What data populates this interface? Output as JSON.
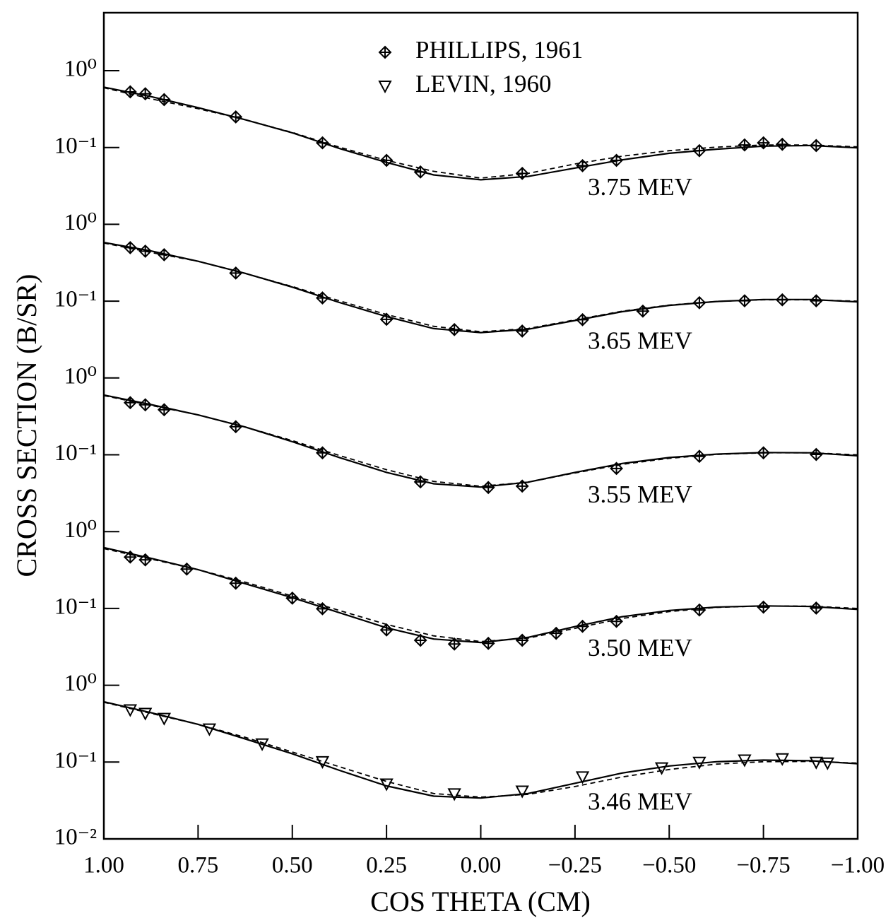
{
  "chart_data": {
    "type": "line",
    "log_y": true,
    "xlabel": "COS THETA (CM)",
    "ylabel": "CROSS SECTION  (B/SR)",
    "xlim": [
      1,
      -1
    ],
    "xticks": [
      {
        "value": 1,
        "label": "1.00"
      },
      {
        "value": 0.75,
        "label": "0.75"
      },
      {
        "value": 0.5,
        "label": "0.50"
      },
      {
        "value": 0.25,
        "label": "0.25"
      },
      {
        "value": 0,
        "label": "0.00"
      },
      {
        "value": -0.25,
        "label": "−0.25"
      },
      {
        "value": -0.5,
        "label": "−0.50"
      },
      {
        "value": -0.75,
        "label": "−0.75"
      },
      {
        "value": -1,
        "label": "−1.00"
      }
    ],
    "legend": [
      {
        "name": "PHILLIPS, 1961",
        "marker": "diamond"
      },
      {
        "name": "LEVIN, 1960",
        "marker": "triangle"
      }
    ],
    "color": "#000000",
    "curve_x": [
      1,
      0.875,
      0.75,
      0.625,
      0.5,
      0.375,
      0.25,
      0.125,
      0,
      -0.125,
      -0.25,
      -0.375,
      -0.5,
      -0.625,
      -0.75,
      -0.875,
      -1
    ],
    "panels": [
      {
        "label": "3.75 MEV",
        "ylim": [
          0.01,
          1
        ],
        "yticks": [
          {
            "value": 0.1,
            "label": "10⁻¹"
          },
          {
            "value": 1,
            "label": "10⁰"
          }
        ],
        "marker": "diamond",
        "x": [
          0.93,
          0.89,
          0.84,
          0.65,
          0.42,
          0.25,
          0.16,
          -0.11,
          -0.27,
          -0.36,
          -0.58,
          -0.7,
          -0.75,
          -0.8,
          -0.89
        ],
        "values": [
          0.53,
          0.5,
          0.42,
          0.25,
          0.115,
          0.068,
          0.048,
          0.046,
          0.058,
          0.068,
          0.091,
          0.108,
          0.115,
          0.11,
          0.106
        ],
        "solid": [
          0.61,
          0.46,
          0.33,
          0.23,
          0.155,
          0.097,
          0.064,
          0.044,
          0.038,
          0.042,
          0.054,
          0.069,
          0.084,
          0.095,
          0.104,
          0.106,
          0.099
        ],
        "dashed": [
          0.6,
          0.43,
          0.32,
          0.23,
          0.157,
          0.101,
          0.068,
          0.049,
          0.04,
          0.046,
          0.061,
          0.077,
          0.091,
          0.101,
          0.108,
          0.108,
          0.102
        ]
      },
      {
        "label": "3.65 MEV",
        "ylim": [
          0.01,
          1
        ],
        "yticks": [
          {
            "value": 0.1,
            "label": "10⁻¹"
          },
          {
            "value": 1,
            "label": "10⁰"
          }
        ],
        "marker": "diamond",
        "x": [
          0.93,
          0.89,
          0.84,
          0.65,
          0.42,
          0.25,
          0.07,
          -0.11,
          -0.27,
          -0.43,
          -0.58,
          -0.7,
          -0.8,
          -0.89
        ],
        "values": [
          0.497,
          0.447,
          0.402,
          0.232,
          0.11,
          0.058,
          0.0426,
          0.0408,
          0.0573,
          0.0741,
          0.0954,
          0.101,
          0.104,
          0.101
        ],
        "solid": [
          0.58,
          0.45,
          0.33,
          0.23,
          0.152,
          0.096,
          0.063,
          0.044,
          0.039,
          0.043,
          0.056,
          0.073,
          0.088,
          0.099,
          0.105,
          0.105,
          0.098
        ],
        "dashed": [
          0.57,
          0.43,
          0.33,
          0.23,
          0.155,
          0.101,
          0.067,
          0.047,
          0.04,
          0.044,
          0.057,
          0.074,
          0.089,
          0.099,
          0.104,
          0.104,
          0.1
        ]
      },
      {
        "label": "3.55 MEV",
        "ylim": [
          0.01,
          1
        ],
        "yticks": [
          {
            "value": 0.1,
            "label": "10⁻¹"
          },
          {
            "value": 1,
            "label": "10⁰"
          }
        ],
        "marker": "diamond",
        "x": [
          0.93,
          0.89,
          0.84,
          0.65,
          0.42,
          0.16,
          -0.02,
          -0.11,
          -0.36,
          -0.58,
          -0.75,
          -0.89
        ],
        "values": [
          0.477,
          0.447,
          0.386,
          0.232,
          0.106,
          0.0444,
          0.0375,
          0.0391,
          0.0664,
          0.0954,
          0.106,
          0.101
        ],
        "solid": [
          0.6,
          0.45,
          0.33,
          0.23,
          0.148,
          0.092,
          0.059,
          0.042,
          0.038,
          0.044,
          0.059,
          0.077,
          0.092,
          0.102,
          0.107,
          0.106,
          0.097
        ],
        "dashed": [
          0.59,
          0.44,
          0.33,
          0.23,
          0.153,
          0.098,
          0.064,
          0.045,
          0.039,
          0.044,
          0.058,
          0.075,
          0.09,
          0.101,
          0.106,
          0.106,
          0.1
        ]
      },
      {
        "label": "3.50 MEV",
        "ylim": [
          0.01,
          1
        ],
        "yticks": [
          {
            "value": 0.1,
            "label": "10⁻¹"
          },
          {
            "value": 1,
            "label": "10⁰"
          }
        ],
        "marker": "diamond",
        "x": [
          0.93,
          0.89,
          0.78,
          0.65,
          0.5,
          0.42,
          0.25,
          0.16,
          0.07,
          -0.02,
          -0.11,
          -0.2,
          -0.27,
          -0.36,
          -0.58,
          -0.75,
          -0.89
        ],
        "values": [
          0.466,
          0.429,
          0.325,
          0.213,
          0.136,
          0.099,
          0.0525,
          0.0385,
          0.0344,
          0.0351,
          0.0385,
          0.0474,
          0.0585,
          0.0678,
          0.0954,
          0.104,
          0.101
        ],
        "solid": [
          0.62,
          0.45,
          0.32,
          0.21,
          0.138,
          0.088,
          0.056,
          0.04,
          0.036,
          0.042,
          0.058,
          0.078,
          0.094,
          0.104,
          0.108,
          0.106,
          0.097
        ],
        "dashed": [
          0.6,
          0.44,
          0.32,
          0.22,
          0.145,
          0.094,
          0.062,
          0.044,
          0.037,
          0.041,
          0.055,
          0.074,
          0.091,
          0.103,
          0.108,
          0.107,
          0.1
        ]
      },
      {
        "label": "3.46 MEV",
        "ylim": [
          0.01,
          1
        ],
        "yticks": [
          {
            "value": 0.01,
            "label": "10⁻²"
          },
          {
            "value": 0.1,
            "label": "10⁻¹"
          },
          {
            "value": 1,
            "label": "10⁰"
          }
        ],
        "marker": "triangle",
        "x": [
          0.93,
          0.89,
          0.84,
          0.72,
          0.58,
          0.42,
          0.25,
          0.07,
          -0.11,
          -0.27,
          -0.48,
          -0.58,
          -0.7,
          -0.8,
          -0.89,
          -0.92
        ],
        "values": [
          0.477,
          0.429,
          0.369,
          0.269,
          0.172,
          0.101,
          0.0516,
          0.0385,
          0.0418,
          0.064,
          0.0838,
          0.099,
          0.106,
          0.11,
          0.099,
          0.097
        ],
        "solid": [
          0.61,
          0.44,
          0.31,
          0.2,
          0.128,
          0.078,
          0.049,
          0.036,
          0.034,
          0.039,
          0.053,
          0.072,
          0.089,
          0.101,
          0.106,
          0.104,
          0.095
        ],
        "dashed": [
          0.6,
          0.43,
          0.31,
          0.21,
          0.135,
          0.087,
          0.056,
          0.039,
          0.035,
          0.038,
          0.048,
          0.064,
          0.08,
          0.094,
          0.101,
          0.102,
          0.097
        ]
      }
    ]
  }
}
